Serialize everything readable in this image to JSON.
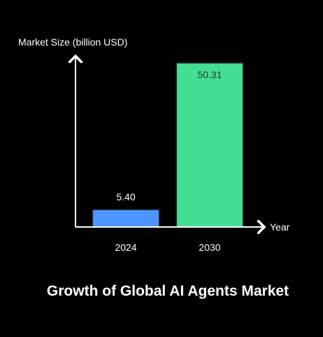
{
  "chart_data": {
    "type": "bar",
    "title": "Growth of Global AI Agents Market",
    "ylabel": "Market Size (billion USD)",
    "xlabel": "Year",
    "categories": [
      "2024",
      "2030"
    ],
    "values": [
      5.4,
      50.31
    ],
    "value_labels": [
      "5.40",
      "50.31"
    ],
    "ylim": [
      0,
      51.5
    ],
    "grid": false,
    "legend": "none",
    "colors": {
      "bars": [
        "#4d94ff",
        "#43de93"
      ],
      "bar_stroke": "#1a1a1a",
      "axis": "#ffffff",
      "background": "#000000",
      "value_label_inside": "#1f3a2c",
      "value_label_outside": "#ffffff"
    }
  }
}
